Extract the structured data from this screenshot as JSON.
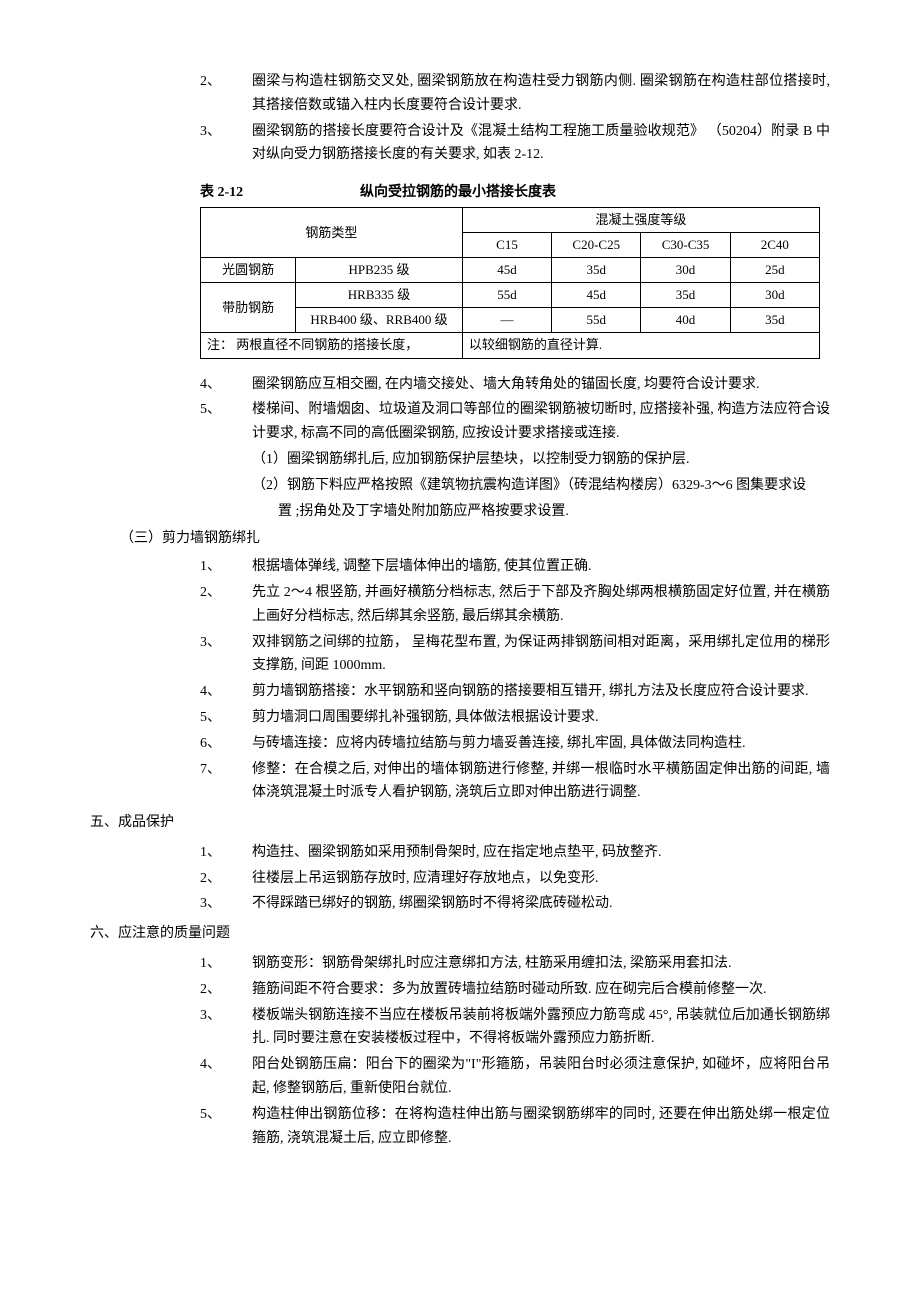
{
  "top_items": [
    {
      "num": "2、",
      "text": "圈梁与构造柱钢筋交叉处, 圈梁钢筋放在构造柱受力钢筋内侧. 圈梁钢筋在构造柱部位搭接时, 其搭接倍数或锚入柱内长度要符合设计要求."
    },
    {
      "num": "3、",
      "text": "圈梁钢筋的搭接长度要符合设计及《混凝土结构工程施工质量验收规范》 （50204）附录 B 中对纵向受力钢筋搭接长度的有关要求, 如表 2-12."
    }
  ],
  "table": {
    "caption_num": "表 2-12",
    "caption_title": "纵向受拉钢筋的最小搭接长度表",
    "head_rebar_type": "钢筋类型",
    "head_concrete": "混凝土强度等级",
    "cols": [
      "C15",
      "C20-C25",
      "C30-C35",
      "2C40"
    ],
    "rows": [
      {
        "type": "光圆钢筋",
        "grade": "HPB235 级",
        "vals": [
          "45d",
          "35d",
          "30d",
          "25d"
        ]
      },
      {
        "type": "带肋钢筋",
        "grade": "HRB335 级",
        "vals": [
          "55d",
          "45d",
          "35d",
          "30d"
        ],
        "rowspan": 2
      },
      {
        "type": "",
        "grade": "HRB400 级、RRB400 级",
        "vals": [
          "—",
          "55d",
          "40d",
          "35d"
        ]
      }
    ],
    "note_left": "注： 两根直径不同钢筋的搭接长度，",
    "note_right": "以较细钢筋的直径计算."
  },
  "mid_items": [
    {
      "num": "4、",
      "text": "圈梁钢筋应互相交圈, 在内墙交接处、墙大角转角处的锚固长度, 均要符合设计要求."
    },
    {
      "num": "5、",
      "text": "楼梯间、附墙烟囱、垃圾道及洞口等部位的圈梁钢筋被切断时, 应搭接补强, 构造方法应符合设计要求, 标高不同的高低圈梁钢筋, 应按设计要求搭接或连接."
    }
  ],
  "sub_items": [
    "（1）圈梁钢筋绑扎后, 应加钢筋保护层垫块，以控制受力钢筋的保护层.",
    "（2）钢筋下料应严格按照《建筑物抗震构造详图》（砖混结构楼房）6329-3～6 图集要求设置 ;拐角处及丁字墙处附加筋应严格按要求设置."
  ],
  "section_3_title": "（三）剪力墙钢筋绑扎",
  "section_3_items": [
    {
      "num": "1、",
      "text": "根据墙体弹线, 调整下层墙体伸出的墙筋, 使其位置正确."
    },
    {
      "num": "2、",
      "text": "先立 2～4 根竖筋, 并画好横筋分档标志, 然后于下部及齐胸处绑两根横筋固定好位置, 并在横筋上画好分档标志, 然后绑其余竖筋, 最后绑其余横筋."
    },
    {
      "num": "3、",
      "text": "双排钢筋之间绑的拉筋， 呈梅花型布置, 为保证两排钢筋间相对距离，采用绑扎定位用的梯形支撑筋, 间距 1000mm."
    },
    {
      "num": "4、",
      "text": "剪力墙钢筋搭接：水平钢筋和竖向钢筋的搭接要相互错开, 绑扎方法及长度应符合设计要求."
    },
    {
      "num": "5、",
      "text": "剪力墙洞口周围要绑扎补强钢筋, 具体做法根据设计要求."
    },
    {
      "num": "6、",
      "text": "与砖墙连接：应将内砖墙拉结筋与剪力墙妥善连接, 绑扎牢固, 具体做法同构造柱."
    },
    {
      "num": "7、",
      "text": "修整：在合模之后, 对伸出的墙体钢筋进行修整, 并绑一根临时水平横筋固定伸出筋的间距, 墙体浇筑混凝土时派专人看护钢筋, 浇筑后立即对伸出筋进行调整."
    }
  ],
  "section_5_title": "五、成品保护",
  "section_5_items": [
    {
      "num": "1、",
      "text": "构造拄、圈梁钢筋如采用预制骨架时, 应在指定地点垫平, 码放整齐."
    },
    {
      "num": "2、",
      "text": "往楼层上吊运钢筋存放时, 应清理好存放地点，以免变形."
    },
    {
      "num": "3、",
      "text": "不得踩踏已绑好的钢筋, 绑圈梁钢筋时不得将梁底砖碰松动."
    }
  ],
  "section_6_title": "六、应注意的质量问题",
  "section_6_items": [
    {
      "num": "1、",
      "text": "钢筋变形：钢筋骨架绑扎时应注意绑扣方法, 柱筋采用缠扣法, 梁筋采用套扣法."
    },
    {
      "num": "2、",
      "text": "箍筋间距不符合要求：多为放置砖墙拉结筋时碰动所致. 应在砌完后合模前修整一次."
    },
    {
      "num": "3、",
      "text": "楼板端头钢筋连接不当应在楼板吊装前将板端外露预应力筋弯成 45°, 吊装就位后加通长钢筋绑扎. 同时要注意在安装楼板过程中，不得将板端外露预应力筋折断."
    },
    {
      "num": "4、",
      "text": "阳台处钢筋压扁：阳台下的圈梁为\"I\"形箍筋，吊装阳台时必须注意保护, 如碰坏，应将阳台吊起, 修整钢筋后, 重新使阳台就位."
    },
    {
      "num": "5、",
      "text": "构造柱伸出钢筋位移：在将构造柱伸出筋与圈梁钢筋绑牢的同时, 还要在伸出筋处绑一根定位箍筋, 浇筑混凝土后, 应立即修整."
    }
  ]
}
